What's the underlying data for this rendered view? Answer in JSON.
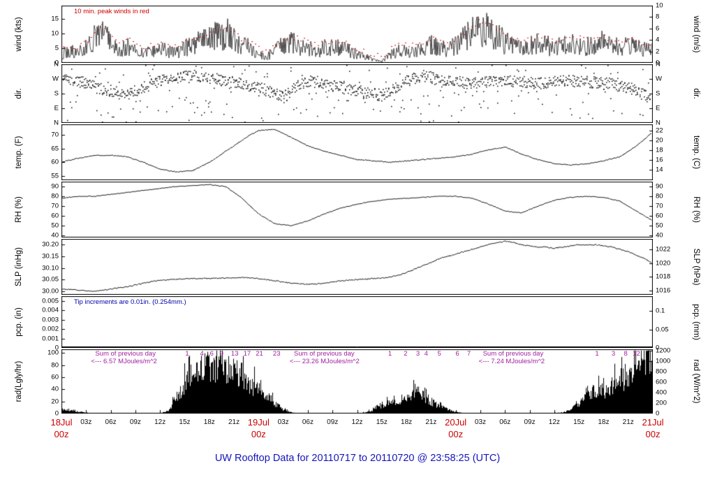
{
  "chart_data": {
    "type": "line",
    "subtype": "multi-panel surface meteogram, 72 hours",
    "title": "UW Rooftop Data for 20110717 to 20110720 @ 23:58:25 (UTC)",
    "x_axis": {
      "span_hours": 72,
      "hour_ticks": [
        {
          "h": 3,
          "label": "03z"
        },
        {
          "h": 6,
          "label": "06z"
        },
        {
          "h": 9,
          "label": "09z"
        },
        {
          "h": 12,
          "label": "12z"
        },
        {
          "h": 15,
          "label": "15z"
        },
        {
          "h": 18,
          "label": "18z"
        },
        {
          "h": 21,
          "label": "21z"
        },
        {
          "h": 27,
          "label": "03z"
        },
        {
          "h": 30,
          "label": "06z"
        },
        {
          "h": 33,
          "label": "09z"
        },
        {
          "h": 36,
          "label": "12z"
        },
        {
          "h": 39,
          "label": "15z"
        },
        {
          "h": 42,
          "label": "18z"
        },
        {
          "h": 45,
          "label": "21z"
        },
        {
          "h": 51,
          "label": "03z"
        },
        {
          "h": 54,
          "label": "06z"
        },
        {
          "h": 57,
          "label": "09z"
        },
        {
          "h": 60,
          "label": "12z"
        },
        {
          "h": 63,
          "label": "15z"
        },
        {
          "h": 66,
          "label": "18z"
        },
        {
          "h": 69,
          "label": "21z"
        }
      ],
      "date_ticks": [
        {
          "h": 0,
          "date": "18Jul",
          "time": "00z"
        },
        {
          "h": 24,
          "date": "19Jul",
          "time": "00z"
        },
        {
          "h": 48,
          "date": "20Jul",
          "time": "00z"
        },
        {
          "h": 72,
          "date": "21Jul",
          "time": "00z"
        }
      ]
    },
    "panels": [
      {
        "id": "wind",
        "left_label": "wind (kts)",
        "right_label": "wind (m/s)",
        "ymin": 0,
        "ymax": 19.44,
        "left_ticks": [
          {
            "v": 0,
            "t": "0"
          },
          {
            "v": 5,
            "t": "5"
          },
          {
            "v": 10,
            "t": "10"
          },
          {
            "v": 15,
            "t": "15"
          }
        ],
        "right_ticks": [
          {
            "v": 0,
            "t": "0"
          },
          {
            "v": 3.889,
            "t": "2"
          },
          {
            "v": 7.777,
            "t": "4"
          },
          {
            "v": 11.666,
            "t": "6"
          },
          {
            "v": 15.555,
            "t": "8"
          },
          {
            "v": 19.443,
            "t": "10"
          }
        ]
      },
      {
        "id": "dir",
        "left_label": "dir.",
        "right_label": "dir.",
        "ymin": 0,
        "ymax": 360,
        "left_ticks": [
          {
            "v": 360,
            "t": "N"
          },
          {
            "v": 270,
            "t": "W"
          },
          {
            "v": 180,
            "t": "S"
          },
          {
            "v": 90,
            "t": "E"
          },
          {
            "v": 0,
            "t": "N"
          }
        ],
        "right_ticks": [
          {
            "v": 360,
            "t": "N"
          },
          {
            "v": 270,
            "t": "W"
          },
          {
            "v": 180,
            "t": "S"
          },
          {
            "v": 90,
            "t": "E"
          },
          {
            "v": 0,
            "t": "N"
          }
        ]
      },
      {
        "id": "temp",
        "left_label": "temp. (F)",
        "right_label": "temp. (C)",
        "ymin": 53.5,
        "ymax": 73.8,
        "left_ticks": [
          {
            "v": 55,
            "t": "55"
          },
          {
            "v": 60,
            "t": "60"
          },
          {
            "v": 65,
            "t": "65"
          },
          {
            "v": 70,
            "t": "70"
          }
        ],
        "right_ticks": [
          {
            "v": 57.2,
            "t": "14"
          },
          {
            "v": 60.8,
            "t": "16"
          },
          {
            "v": 64.4,
            "t": "18"
          },
          {
            "v": 68,
            "t": "20"
          },
          {
            "v": 71.6,
            "t": "22"
          }
        ]
      },
      {
        "id": "rh",
        "left_label": "RH (%)",
        "right_label": "RH (%)",
        "ymin": 38,
        "ymax": 95,
        "left_ticks": [
          {
            "v": 40,
            "t": "40"
          },
          {
            "v": 50,
            "t": "50"
          },
          {
            "v": 60,
            "t": "60"
          },
          {
            "v": 70,
            "t": "70"
          },
          {
            "v": 80,
            "t": "80"
          },
          {
            "v": 90,
            "t": "90"
          }
        ],
        "right_ticks": [
          {
            "v": 40,
            "t": "40"
          },
          {
            "v": 50,
            "t": "50"
          },
          {
            "v": 60,
            "t": "60"
          },
          {
            "v": 70,
            "t": "70"
          },
          {
            "v": 80,
            "t": "80"
          },
          {
            "v": 90,
            "t": "90"
          }
        ]
      },
      {
        "id": "slp",
        "left_label": "SLP (inHg)",
        "right_label": "SLP (hPa)",
        "ymin": 29.985,
        "ymax": 30.225,
        "left_ticks": [
          {
            "v": 30.0,
            "t": "30.00"
          },
          {
            "v": 30.05,
            "t": "30.05"
          },
          {
            "v": 30.1,
            "t": "30.10"
          },
          {
            "v": 30.15,
            "t": "30.15"
          },
          {
            "v": 30.2,
            "t": "30.20"
          }
        ],
        "right_ticks": [
          {
            "v": 30.0025,
            "t": "1016"
          },
          {
            "v": 30.0616,
            "t": "1018"
          },
          {
            "v": 30.1206,
            "t": "1020"
          },
          {
            "v": 30.1797,
            "t": "1022"
          }
        ]
      },
      {
        "id": "pcp",
        "left_label": "pcp. (in)",
        "right_label": "pcp. (mm)",
        "ymin": 0,
        "ymax": 0.0055,
        "left_ticks": [
          {
            "v": 0,
            "t": "0"
          },
          {
            "v": 0.001,
            "t": "0.001"
          },
          {
            "v": 0.002,
            "t": "0.002"
          },
          {
            "v": 0.003,
            "t": "0.003"
          },
          {
            "v": 0.004,
            "t": "0.004"
          },
          {
            "v": 0.005,
            "t": "0.005"
          }
        ],
        "right_ticks": [
          {
            "v": 0,
            "t": "0"
          },
          {
            "v": 0.001969,
            "t": "0.05"
          },
          {
            "v": 0.003937,
            "t": "0.1"
          }
        ]
      },
      {
        "id": "rad",
        "left_label": "rad(Lgly/hr)",
        "right_label": "rad (W/m^2)",
        "ymin": 0,
        "ymax": 106,
        "left_ticks": [
          {
            "v": 0,
            "t": "0"
          },
          {
            "v": 20,
            "t": "20"
          },
          {
            "v": 40,
            "t": "40"
          },
          {
            "v": 60,
            "t": "60"
          },
          {
            "v": 80,
            "t": "80"
          },
          {
            "v": 100,
            "t": "100"
          }
        ],
        "right_ticks": [
          {
            "v": 0,
            "t": "0"
          },
          {
            "v": 17.2,
            "t": "200"
          },
          {
            "v": 34.4,
            "t": "400"
          },
          {
            "v": 51.6,
            "t": "600"
          },
          {
            "v": 68.8,
            "t": "800"
          },
          {
            "v": 86.0,
            "t": "1000"
          },
          {
            "v": 103.2,
            "t": "1200"
          }
        ]
      }
    ],
    "series": {
      "hours_step": 1,
      "wind_kts": [
        3,
        4,
        3.5,
        5,
        8,
        11,
        6,
        4,
        6,
        4,
        3,
        4,
        5,
        4,
        3.5,
        5,
        6,
        7,
        8,
        9.5,
        10,
        8,
        6,
        5,
        3,
        2,
        4,
        6,
        7,
        6,
        5,
        4,
        5,
        6,
        5,
        4,
        3,
        2,
        1,
        0.5,
        3,
        4,
        4.5,
        4,
        5,
        6,
        5,
        4.5,
        6,
        8,
        10,
        12,
        11,
        9,
        7,
        6,
        5,
        6,
        7,
        6,
        5,
        6,
        7,
        6.5,
        5.5,
        6,
        7,
        6,
        5.5,
        6,
        5,
        4.5,
        5
      ],
      "wind_peak_kts": [
        5,
        6,
        5.5,
        7,
        11,
        13.5,
        8.5,
        6,
        8,
        6,
        5,
        6,
        7,
        6,
        5.5,
        7,
        8,
        9,
        10,
        12,
        12.5,
        10,
        8,
        7,
        5,
        3.5,
        6,
        8,
        9,
        8,
        7,
        6,
        7,
        8,
        7,
        6,
        4.5,
        3.5,
        2.5,
        2,
        5,
        6,
        6.5,
        6,
        7,
        8,
        7,
        6.5,
        8,
        10,
        12.5,
        14.5,
        13.5,
        11.5,
        9,
        8,
        7,
        8,
        9,
        8,
        7,
        8,
        9,
        8.5,
        7.5,
        8,
        9,
        8,
        7.5,
        8,
        7,
        6.5,
        7
      ],
      "wind_dir_deg": [
        270,
        265,
        260,
        250,
        230,
        210,
        200,
        190,
        180,
        200,
        220,
        240,
        260,
        270,
        280,
        290,
        300,
        290,
        280,
        270,
        260,
        250,
        240,
        230,
        220,
        200,
        180,
        160,
        200,
        240,
        260,
        250,
        240,
        230,
        220,
        210,
        200,
        190,
        180,
        170,
        200,
        230,
        260,
        280,
        290,
        280,
        270,
        260,
        255,
        250,
        245,
        250,
        255,
        260,
        265,
        260,
        255,
        250,
        245,
        250,
        255,
        260,
        265,
        260,
        255,
        250,
        245,
        240,
        230,
        220,
        200,
        170,
        140
      ],
      "temp_f": [
        60,
        60.8,
        61.5,
        62,
        62.5,
        62.5,
        62.5,
        62.3,
        62,
        61,
        60,
        58.8,
        57.5,
        57,
        56.5,
        56.8,
        57,
        58.5,
        60,
        62,
        64,
        66,
        68,
        70,
        71.5,
        71.8,
        72,
        70.5,
        69,
        67.5,
        66,
        65,
        64,
        63.3,
        62.5,
        61.8,
        61,
        60.8,
        60.5,
        60.3,
        60,
        60.3,
        60.5,
        60.8,
        61,
        61.3,
        61.5,
        61.8,
        62,
        62.5,
        63,
        63.8,
        64.5,
        65,
        65.5,
        64.3,
        63,
        62,
        61,
        60.3,
        59.5,
        59.3,
        59,
        59.3,
        59.5,
        60,
        60.5,
        61.3,
        62,
        64,
        66,
        68.5,
        71
      ],
      "rh_pct": [
        78,
        79,
        80,
        80,
        80,
        81,
        82,
        83,
        84,
        85,
        86,
        87,
        88,
        89,
        90,
        90.5,
        91,
        91.5,
        92,
        91,
        90,
        84,
        78,
        70,
        62,
        57,
        52,
        51,
        50,
        52.5,
        55,
        58.5,
        62,
        65,
        68,
        70,
        72,
        73.5,
        75,
        76,
        77,
        77.5,
        78,
        78.5,
        79,
        79.5,
        80,
        80,
        80,
        79,
        78,
        75,
        72,
        68.5,
        65,
        64,
        63,
        66.5,
        70,
        73,
        76,
        77.5,
        79,
        79.5,
        80,
        79.5,
        79,
        77,
        75,
        70,
        65,
        60,
        55
      ],
      "slp_inhg": [
        30.01,
        30.008,
        30.005,
        30.002,
        30.0,
        30.005,
        30.01,
        30.015,
        30.02,
        30.027,
        30.035,
        30.042,
        30.048,
        30.05,
        30.052,
        30.053,
        30.055,
        30.055,
        30.056,
        30.056,
        30.057,
        30.058,
        30.06,
        30.058,
        30.055,
        30.05,
        30.045,
        30.04,
        30.035,
        30.032,
        30.03,
        30.032,
        30.035,
        30.04,
        30.045,
        30.048,
        30.05,
        30.052,
        30.055,
        30.057,
        30.06,
        30.07,
        30.08,
        30.095,
        30.11,
        30.125,
        30.14,
        30.15,
        30.16,
        30.17,
        30.18,
        30.19,
        30.2,
        30.21,
        30.215,
        30.21,
        30.2,
        30.195,
        30.19,
        30.19,
        30.185,
        30.19,
        30.195,
        30.2,
        30.2,
        30.2,
        30.195,
        30.19,
        30.18,
        30.17,
        30.155,
        30.14,
        30.12
      ],
      "pcp_in_constant": 0,
      "rad_lyhr": [
        8,
        6,
        4,
        2,
        0,
        0,
        0,
        0,
        0,
        0,
        0,
        0,
        0,
        6,
        35,
        65,
        80,
        90,
        100,
        95,
        85,
        95,
        75,
        55,
        65,
        40,
        20,
        8,
        2,
        0,
        0,
        0,
        0,
        0,
        0,
        0,
        0,
        3,
        8,
        15,
        25,
        20,
        30,
        45,
        35,
        25,
        15,
        8,
        3,
        1,
        0,
        0,
        0,
        0,
        0,
        0,
        0,
        0,
        0,
        0,
        1,
        2,
        8,
        20,
        35,
        50,
        45,
        60,
        70,
        80,
        90,
        100,
        95
      ]
    },
    "annotations": {
      "wind_note": {
        "text": "10 min. peak winds in red",
        "color": "#cc0000"
      },
      "pcp_note": {
        "text": "Tip increments are 0.01in. (0.254mm.)",
        "color": "#0000aa"
      },
      "rad_sums": [
        {
          "label": "Sum of previous day",
          "value": "<--- 6.57 MJoules/m^2",
          "h": 3.6
        },
        {
          "label": "Sum of previous day",
          "value": "<--- 23.26 MJoules/m^2",
          "h": 27.8
        },
        {
          "label": "Sum of previous day",
          "value": "<--- 7.24 MJoules/m^2",
          "h": 50.8
        }
      ],
      "rad_counts": [
        {
          "h": 15.3,
          "t": "1"
        },
        {
          "h": 17.1,
          "t": "4"
        },
        {
          "h": 18.3,
          "t": "6"
        },
        {
          "h": 19.5,
          "t": "9"
        },
        {
          "h": 21.1,
          "t": "13"
        },
        {
          "h": 22.6,
          "t": "17"
        },
        {
          "h": 24.1,
          "t": "21"
        },
        {
          "h": 26.2,
          "t": "23"
        },
        {
          "h": 40.0,
          "t": "1"
        },
        {
          "h": 41.9,
          "t": "2"
        },
        {
          "h": 43.4,
          "t": "3"
        },
        {
          "h": 44.4,
          "t": "4"
        },
        {
          "h": 46.0,
          "t": "5"
        },
        {
          "h": 48.2,
          "t": "6"
        },
        {
          "h": 49.6,
          "t": "7"
        },
        {
          "h": 65.2,
          "t": "1"
        },
        {
          "h": 67.2,
          "t": "3"
        },
        {
          "h": 68.7,
          "t": "8"
        },
        {
          "h": 70.0,
          "t": "12"
        }
      ]
    },
    "colors": {
      "trace": "#000000",
      "peak": "#dd0000",
      "date": "#cc0000",
      "title": "#1515bb",
      "purple": "#a020a0",
      "pcp_note": "#0000aa",
      "background": "#ffffff"
    }
  }
}
